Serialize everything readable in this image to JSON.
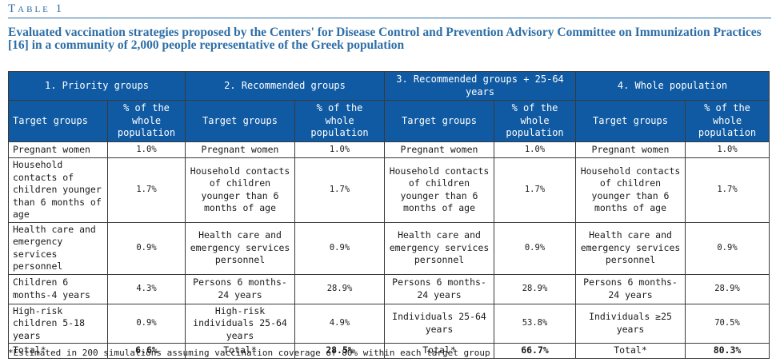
{
  "table_label": "Table 1",
  "caption": "Evaluated vaccination strategies proposed by the Centers' for Disease Control and Prevention Advisory Committee on Immunization Practices [16] in a community of 2,000 people representative of the Greek population",
  "groups": [
    {
      "title": "1. Priority groups",
      "col_target": "Target groups",
      "col_pct": "% of the whole population"
    },
    {
      "title": "2. Recommended groups",
      "col_target": "Target groups",
      "col_pct": "% of the whole population"
    },
    {
      "title": "3. Recommended groups + 25-64 years",
      "col_target": "Target groups",
      "col_pct": "% of the whole population"
    },
    {
      "title": "4. Whole population",
      "col_target": "Target groups",
      "col_pct": "% of the whole population"
    }
  ],
  "rows": [
    [
      {
        "target": "Pregnant women",
        "pct": "1.0%"
      },
      {
        "target": "Pregnant women",
        "pct": "1.0%"
      },
      {
        "target": "Pregnant women",
        "pct": "1.0%"
      },
      {
        "target": "Pregnant women",
        "pct": "1.0%"
      }
    ],
    [
      {
        "target": "Household contacts of children younger than 6 months of age",
        "pct": "1.7%"
      },
      {
        "target": "Household contacts of children younger than 6 months of age",
        "pct": "1.7%"
      },
      {
        "target": "Household contacts of children younger than 6 months of age",
        "pct": "1.7%"
      },
      {
        "target": "Household contacts of children younger than 6 months of age",
        "pct": "1.7%"
      }
    ],
    [
      {
        "target": "Health care and emergency services personnel",
        "pct": "0.9%"
      },
      {
        "target": "Health care and emergency services personnel",
        "pct": "0.9%"
      },
      {
        "target": "Health care and emergency services personnel",
        "pct": "0.9%"
      },
      {
        "target": "Health care and emergency services personnel",
        "pct": "0.9%"
      }
    ],
    [
      {
        "target": "Children 6 months-4 years",
        "pct": "4.3%"
      },
      {
        "target": "Persons 6 months-24 years",
        "pct": "28.9%"
      },
      {
        "target": "Persons 6 months-24 years",
        "pct": "28.9%"
      },
      {
        "target": "Persons 6 months-24 years",
        "pct": "28.9%"
      }
    ],
    [
      {
        "target": "High-risk children 5-18 years",
        "pct": "0.9%"
      },
      {
        "target": "High-risk individuals 25-64 years",
        "pct": "4.9%"
      },
      {
        "target": "Individuals 25-64 years",
        "pct": "53.8%"
      },
      {
        "target": "Individuals ≥25 years",
        "pct": "70.5%"
      }
    ]
  ],
  "totals": [
    {
      "label": "Total*",
      "pct": "6.6%"
    },
    {
      "label": "Total*",
      "pct": "28.5%"
    },
    {
      "label": "Total*",
      "pct": "66.7%"
    },
    {
      "label": "Total*",
      "pct": "80.3%"
    }
  ],
  "footnote": "*Estimated in 200 simulations assuming vaccination coverage of 80% within each target group",
  "colors": {
    "accent": "#2e6ea6",
    "header_bg": "#0f5aa3"
  }
}
